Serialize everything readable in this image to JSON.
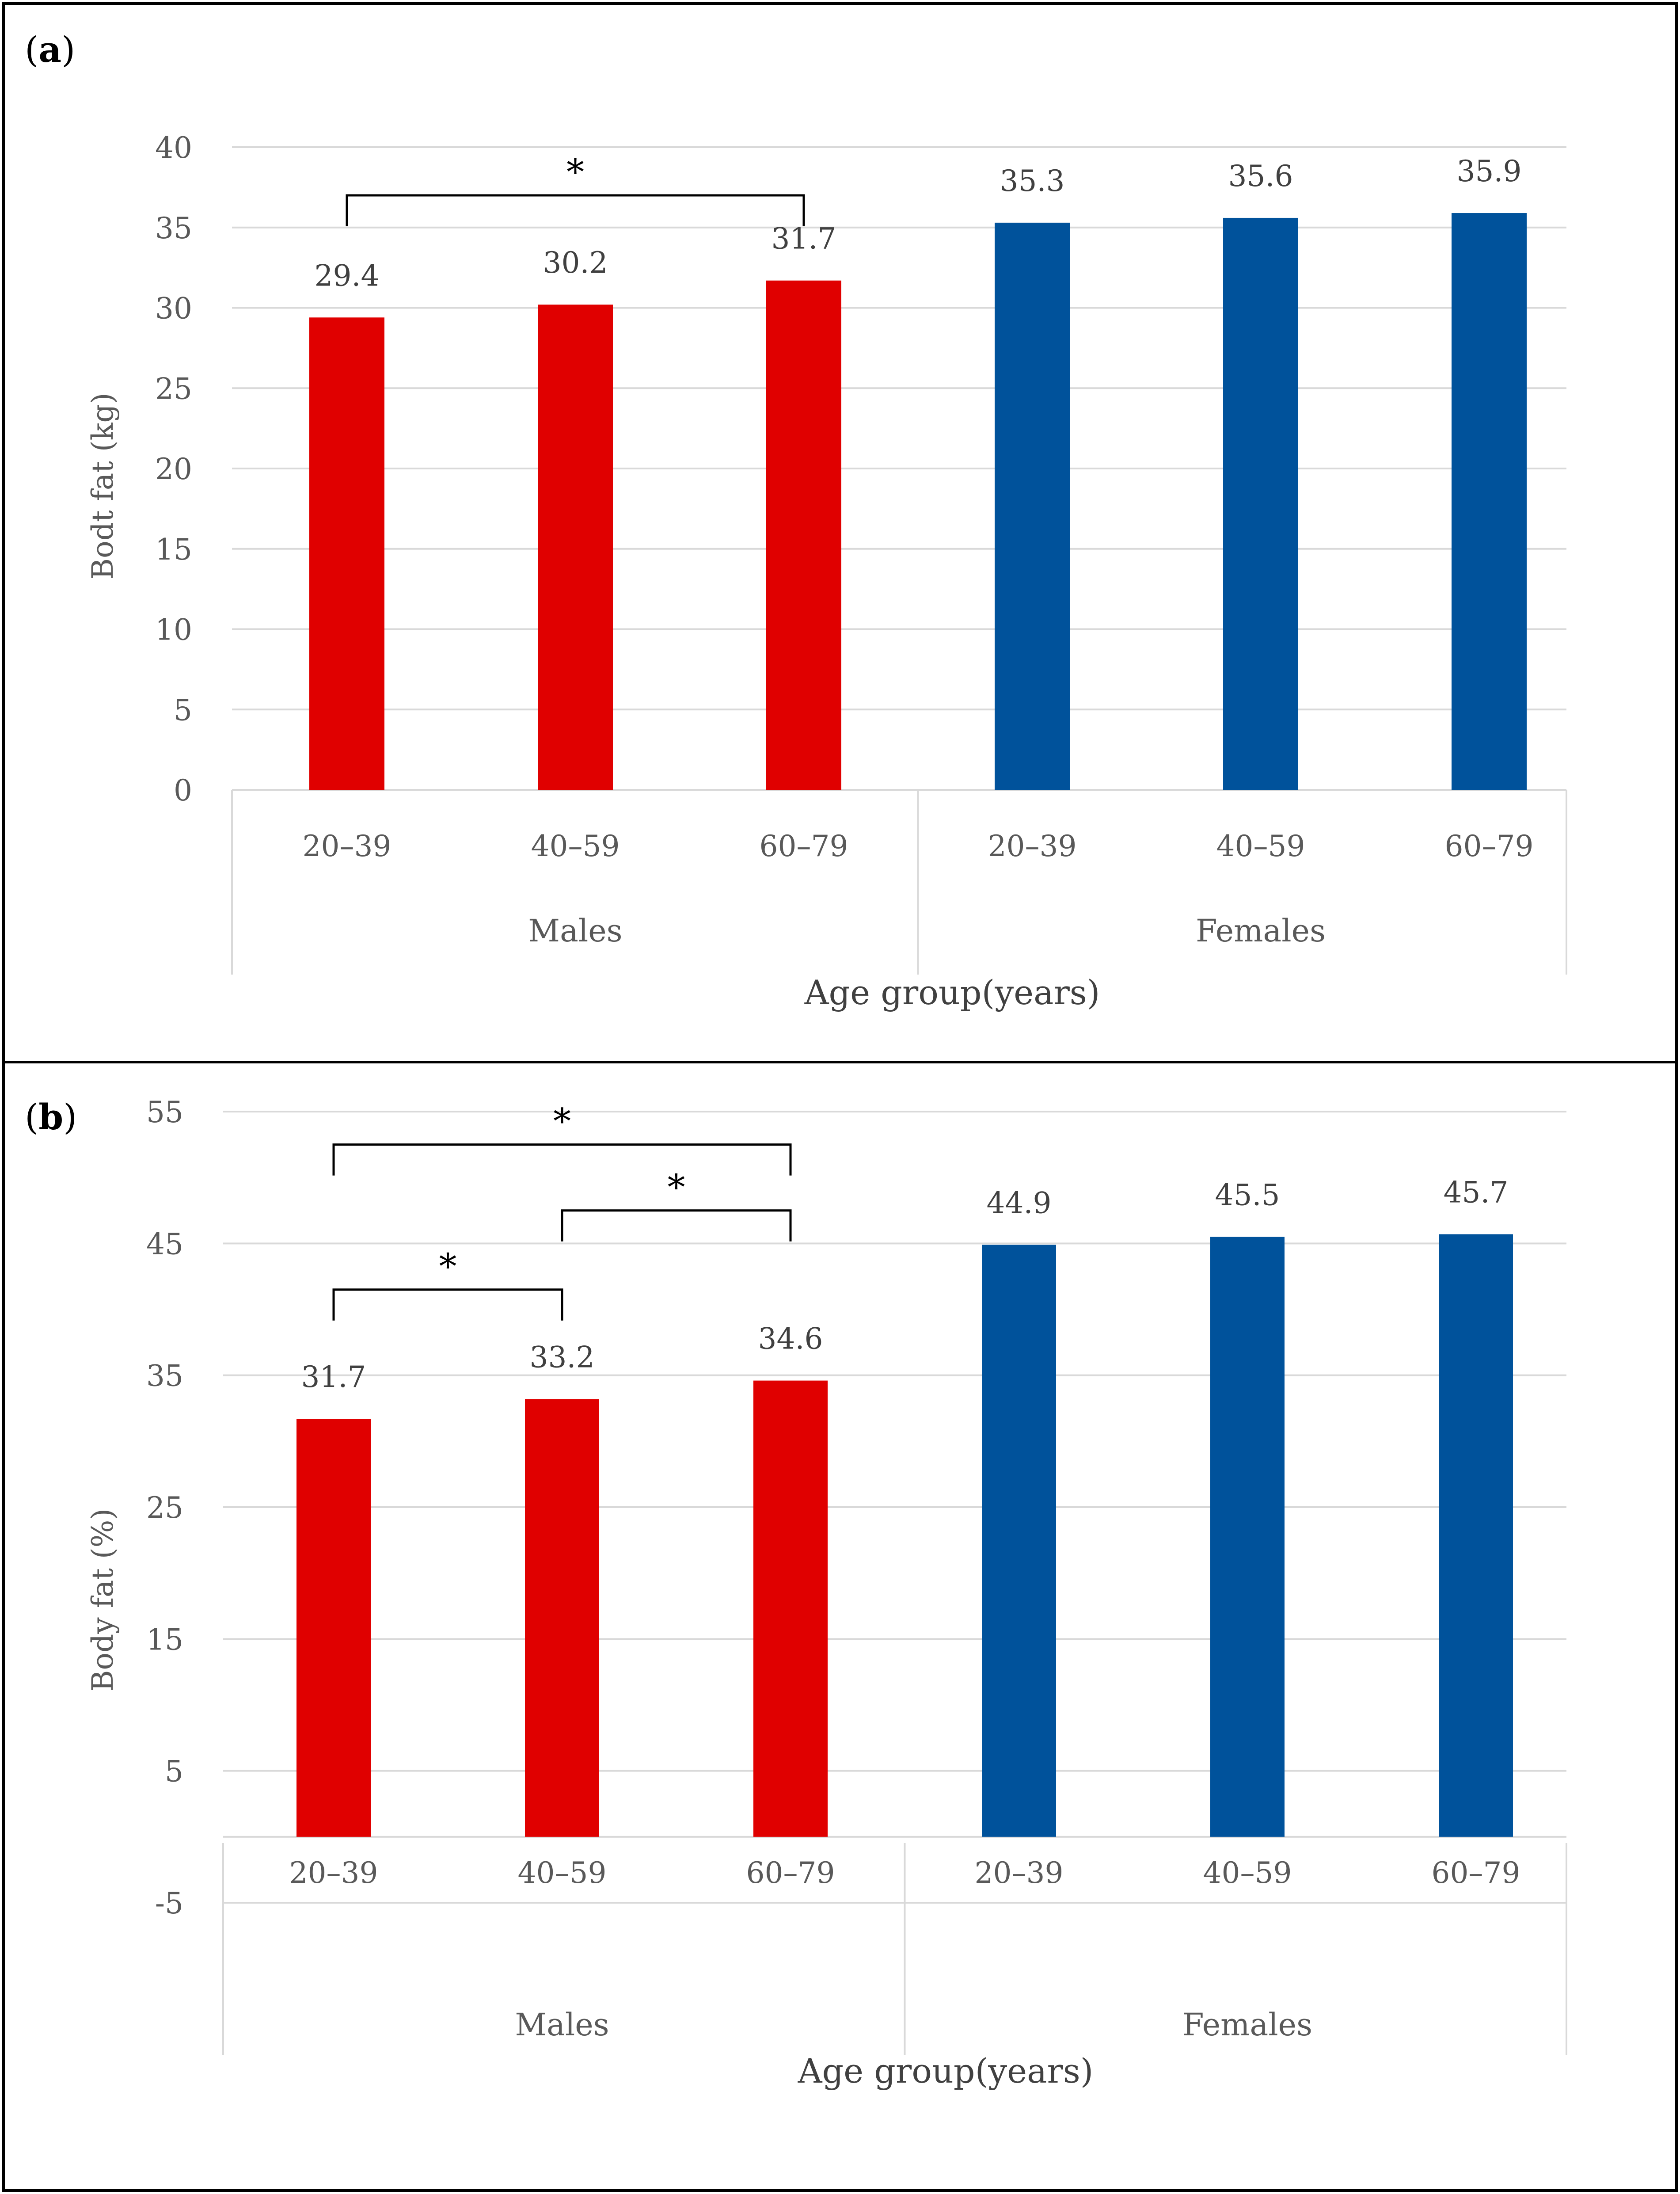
{
  "chart_data": [
    {
      "type": "bar",
      "panel_label": "a",
      "title": "",
      "xlabel": "Age group(years)",
      "ylabel": "Bodt fat (kg)",
      "ylim": [
        0,
        40
      ],
      "yticks": [
        0,
        5,
        10,
        15,
        20,
        25,
        30,
        35,
        40
      ],
      "grid": true,
      "categories": [
        "20–39",
        "40–59",
        "60–79",
        "20–39",
        "40–59",
        "60–79"
      ],
      "groups": [
        {
          "name": "Males",
          "start": 0,
          "end": 2
        },
        {
          "name": "Females",
          "start": 3,
          "end": 5
        }
      ],
      "values": [
        29.4,
        30.2,
        31.7,
        35.3,
        35.6,
        35.9
      ],
      "data_labels": [
        "29.4",
        "30.2",
        "31.7",
        "35.3",
        "35.6",
        "35.9"
      ],
      "bar_colors": [
        "#E00000",
        "#E00000",
        "#E00000",
        "#00529B",
        "#00529B",
        "#00529B"
      ],
      "significance": [
        {
          "from": 0,
          "to": 2,
          "level": 37.0,
          "label": "*"
        }
      ]
    },
    {
      "type": "bar",
      "panel_label": "b",
      "title": "",
      "xlabel": "Age group(years)",
      "ylabel": "Body fat (%)",
      "ylim": [
        -5,
        55
      ],
      "yticks": [
        -5,
        5,
        15,
        25,
        35,
        45,
        55
      ],
      "grid": true,
      "categories": [
        "20–39",
        "40–59",
        "60–79",
        "20–39",
        "40–59",
        "60–79"
      ],
      "groups": [
        {
          "name": "Males",
          "start": 0,
          "end": 2
        },
        {
          "name": "Females",
          "start": 3,
          "end": 5
        }
      ],
      "values": [
        31.7,
        33.2,
        34.6,
        44.9,
        45.5,
        45.7
      ],
      "data_labels": [
        "31.7",
        "33.2",
        "34.6",
        "44.9",
        "45.5",
        "45.7"
      ],
      "bar_colors": [
        "#E00000",
        "#E00000",
        "#E00000",
        "#00529B",
        "#00529B",
        "#00529B"
      ],
      "significance": [
        {
          "from": 0,
          "to": 1,
          "level": 41.5,
          "label": "*"
        },
        {
          "from": 1,
          "to": 2,
          "level": 47.5,
          "label": "*"
        },
        {
          "from": 0,
          "to": 2,
          "level": 52.5,
          "label": "*"
        }
      ]
    }
  ]
}
